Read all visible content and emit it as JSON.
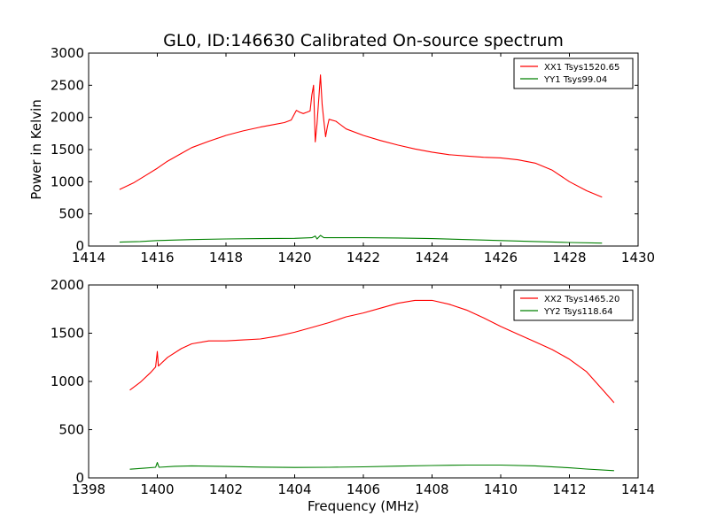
{
  "chart_data": {
    "title": "GL0, ID:146630 Calibrated On-source spectrum",
    "ylabel": "Power in Kelvin",
    "xlabel": "Frequency (MHz)",
    "panels": [
      {
        "type": "line",
        "xlim": [
          1414,
          1430
        ],
        "ylim": [
          0,
          3000
        ],
        "xticks": [
          1414,
          1416,
          1418,
          1420,
          1422,
          1424,
          1426,
          1428,
          1430
        ],
        "yticks": [
          0,
          500,
          1000,
          1500,
          2000,
          2500,
          3000
        ],
        "legend_position": "top-right",
        "series": [
          {
            "name": "XX1 Tsys1520.65",
            "color": "#ff0000",
            "points": [
              [
                1414.9,
                880
              ],
              [
                1415.3,
                980
              ],
              [
                1415.7,
                1110
              ],
              [
                1416.0,
                1210
              ],
              [
                1416.3,
                1320
              ],
              [
                1416.7,
                1440
              ],
              [
                1417.0,
                1530
              ],
              [
                1417.5,
                1630
              ],
              [
                1418.0,
                1720
              ],
              [
                1418.5,
                1790
              ],
              [
                1419.0,
                1850
              ],
              [
                1419.4,
                1890
              ],
              [
                1419.7,
                1920
              ],
              [
                1419.9,
                1960
              ],
              [
                1420.05,
                2110
              ],
              [
                1420.15,
                2080
              ],
              [
                1420.25,
                2060
              ],
              [
                1420.35,
                2080
              ],
              [
                1420.45,
                2100
              ],
              [
                1420.5,
                2350
              ],
              [
                1420.55,
                2500
              ],
              [
                1420.6,
                1620
              ],
              [
                1420.65,
                1900
              ],
              [
                1420.75,
                2660
              ],
              [
                1420.8,
                2200
              ],
              [
                1420.85,
                1950
              ],
              [
                1420.9,
                1700
              ],
              [
                1420.95,
                1850
              ],
              [
                1421.0,
                1970
              ],
              [
                1421.2,
                1940
              ],
              [
                1421.5,
                1820
              ],
              [
                1422.0,
                1720
              ],
              [
                1422.5,
                1640
              ],
              [
                1423.0,
                1570
              ],
              [
                1423.5,
                1510
              ],
              [
                1424.0,
                1460
              ],
              [
                1424.5,
                1420
              ],
              [
                1425.0,
                1400
              ],
              [
                1425.5,
                1380
              ],
              [
                1426.0,
                1370
              ],
              [
                1426.5,
                1340
              ],
              [
                1427.0,
                1290
              ],
              [
                1427.5,
                1180
              ],
              [
                1428.0,
                1000
              ],
              [
                1428.5,
                860
              ],
              [
                1428.95,
                760
              ]
            ]
          },
          {
            "name": "YY1 Tsys99.04",
            "color": "#008000",
            "points": [
              [
                1414.9,
                60
              ],
              [
                1415.5,
                70
              ],
              [
                1416.0,
                85
              ],
              [
                1417.0,
                100
              ],
              [
                1418.0,
                110
              ],
              [
                1419.0,
                115
              ],
              [
                1420.0,
                120
              ],
              [
                1420.5,
                130
              ],
              [
                1420.6,
                155
              ],
              [
                1420.65,
                110
              ],
              [
                1420.75,
                165
              ],
              [
                1420.85,
                130
              ],
              [
                1421.0,
                130
              ],
              [
                1422.0,
                130
              ],
              [
                1423.0,
                125
              ],
              [
                1424.0,
                115
              ],
              [
                1425.0,
                100
              ],
              [
                1426.0,
                85
              ],
              [
                1427.0,
                70
              ],
              [
                1428.0,
                55
              ],
              [
                1428.95,
                45
              ]
            ]
          }
        ]
      },
      {
        "type": "line",
        "xlim": [
          1398,
          1414
        ],
        "ylim": [
          0,
          2000
        ],
        "xticks": [
          1398,
          1400,
          1402,
          1404,
          1406,
          1408,
          1410,
          1412,
          1414
        ],
        "yticks": [
          0,
          500,
          1000,
          1500,
          2000
        ],
        "legend_position": "top-right",
        "series": [
          {
            "name": "XX2 Tsys1465.20",
            "color": "#ff0000",
            "points": [
              [
                1399.2,
                910
              ],
              [
                1399.5,
                990
              ],
              [
                1399.8,
                1090
              ],
              [
                1399.95,
                1150
              ],
              [
                1400.0,
                1310
              ],
              [
                1400.03,
                1160
              ],
              [
                1400.3,
                1250
              ],
              [
                1400.7,
                1340
              ],
              [
                1401.0,
                1390
              ],
              [
                1401.5,
                1420
              ],
              [
                1402.0,
                1420
              ],
              [
                1402.5,
                1430
              ],
              [
                1403.0,
                1440
              ],
              [
                1403.5,
                1470
              ],
              [
                1404.0,
                1510
              ],
              [
                1404.5,
                1560
              ],
              [
                1405.0,
                1610
              ],
              [
                1405.5,
                1670
              ],
              [
                1406.0,
                1710
              ],
              [
                1406.5,
                1760
              ],
              [
                1407.0,
                1810
              ],
              [
                1407.5,
                1840
              ],
              [
                1408.0,
                1840
              ],
              [
                1408.5,
                1800
              ],
              [
                1409.0,
                1740
              ],
              [
                1409.5,
                1660
              ],
              [
                1410.0,
                1570
              ],
              [
                1410.5,
                1490
              ],
              [
                1411.0,
                1410
              ],
              [
                1411.5,
                1330
              ],
              [
                1412.0,
                1230
              ],
              [
                1412.5,
                1100
              ],
              [
                1413.0,
                900
              ],
              [
                1413.3,
                780
              ]
            ]
          },
          {
            "name": "YY2 Tsys118.64",
            "color": "#008000",
            "points": [
              [
                1399.2,
                90
              ],
              [
                1399.6,
                100
              ],
              [
                1399.95,
                110
              ],
              [
                1400.0,
                160
              ],
              [
                1400.05,
                110
              ],
              [
                1400.5,
                120
              ],
              [
                1401.0,
                125
              ],
              [
                1402.0,
                118
              ],
              [
                1403.0,
                112
              ],
              [
                1404.0,
                108
              ],
              [
                1405.0,
                110
              ],
              [
                1406.0,
                115
              ],
              [
                1407.0,
                122
              ],
              [
                1408.0,
                128
              ],
              [
                1409.0,
                133
              ],
              [
                1410.0,
                133
              ],
              [
                1411.0,
                125
              ],
              [
                1412.0,
                105
              ],
              [
                1412.5,
                92
              ],
              [
                1413.3,
                75
              ]
            ]
          }
        ]
      }
    ]
  }
}
